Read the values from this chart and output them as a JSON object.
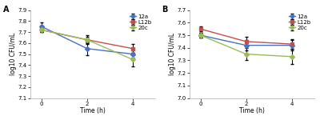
{
  "panel_A": {
    "label": "A",
    "x": [
      0,
      2,
      4
    ],
    "series": {
      "12a": {
        "y": [
          7.75,
          7.55,
          7.5
        ],
        "yerr": [
          0.04,
          0.06,
          0.03
        ],
        "color": "#4472C4",
        "marker": "D"
      },
      "L12b": {
        "y": [
          7.72,
          7.63,
          7.55
        ],
        "yerr": [
          0.02,
          0.04,
          0.04
        ],
        "color": "#C0504D",
        "marker": "s"
      },
      "20c": {
        "y": [
          7.72,
          7.63,
          7.45
        ],
        "yerr": [
          0.02,
          0.03,
          0.06
        ],
        "color": "#9BBB59",
        "marker": "D"
      }
    },
    "ylabel": "log10 CFU/mL",
    "xlabel": "Time (h)",
    "ylim": [
      7.1,
      7.9
    ],
    "yticks": [
      7.1,
      7.2,
      7.3,
      7.4,
      7.5,
      7.6,
      7.7,
      7.8,
      7.9
    ],
    "xticks": [
      0,
      2,
      4
    ]
  },
  "panel_B": {
    "label": "B",
    "x": [
      0,
      2,
      4
    ],
    "series": {
      "12a": {
        "y": [
          7.5,
          7.42,
          7.42
        ],
        "yerr": [
          0.02,
          0.04,
          0.04
        ],
        "color": "#4472C4",
        "marker": "D"
      },
      "L12b": {
        "y": [
          7.55,
          7.45,
          7.43
        ],
        "yerr": [
          0.02,
          0.04,
          0.04
        ],
        "color": "#C0504D",
        "marker": "s"
      },
      "20c": {
        "y": [
          7.5,
          7.35,
          7.33
        ],
        "yerr": [
          0.02,
          0.05,
          0.06
        ],
        "color": "#9BBB59",
        "marker": "D"
      }
    },
    "ylabel": "log10 CFU/mL",
    "xlabel": "Time (h)",
    "ylim": [
      7.0,
      7.7
    ],
    "yticks": [
      7.0,
      7.1,
      7.2,
      7.3,
      7.4,
      7.5,
      7.6,
      7.7
    ],
    "xticks": [
      0,
      2,
      4
    ]
  },
  "bg_color": "#ffffff",
  "spine_color": "#aaaaaa",
  "marker_size": 3.0,
  "line_width": 1.0,
  "capsize": 1.5,
  "elinewidth": 0.7,
  "tick_labelsize": 5.0,
  "axis_labelsize": 5.5,
  "legend_fontsize": 5.0,
  "panel_label_fontsize": 7.0
}
